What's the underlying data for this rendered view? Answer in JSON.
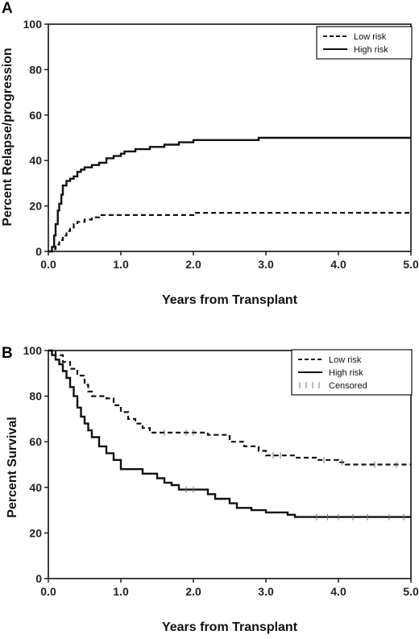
{
  "chart_data": [
    {
      "panel_label": "A",
      "type": "line",
      "step": true,
      "xlabel": "Years from Transplant",
      "ylabel": "Percent Relapse/progression",
      "xlim": [
        0,
        5
      ],
      "ylim": [
        0,
        100
      ],
      "xticks": [
        "0.0",
        "1.0",
        "2.0",
        "3.0",
        "4.0",
        "5.0"
      ],
      "yticks": [
        "0",
        "20",
        "40",
        "60",
        "80",
        "100"
      ],
      "grid": false,
      "legend_position": "top-right",
      "series": [
        {
          "name": "Low risk",
          "style": "dashed",
          "points": [
            [
              0,
              0
            ],
            [
              0.05,
              1
            ],
            [
              0.1,
              3
            ],
            [
              0.15,
              5
            ],
            [
              0.2,
              7
            ],
            [
              0.25,
              9
            ],
            [
              0.3,
              10
            ],
            [
              0.35,
              12
            ],
            [
              0.4,
              13
            ],
            [
              0.5,
              14
            ],
            [
              0.6,
              15
            ],
            [
              0.7,
              16
            ],
            [
              1.0,
              16
            ],
            [
              1.5,
              16
            ],
            [
              1.9,
              16
            ],
            [
              2.0,
              17
            ],
            [
              3.0,
              17
            ],
            [
              4.0,
              17
            ],
            [
              5.0,
              17
            ]
          ]
        },
        {
          "name": "High risk",
          "style": "solid",
          "points": [
            [
              0,
              0
            ],
            [
              0.05,
              2
            ],
            [
              0.08,
              7
            ],
            [
              0.1,
              12
            ],
            [
              0.13,
              18
            ],
            [
              0.15,
              21
            ],
            [
              0.18,
              25
            ],
            [
              0.2,
              29
            ],
            [
              0.25,
              31
            ],
            [
              0.3,
              32
            ],
            [
              0.35,
              33
            ],
            [
              0.4,
              35
            ],
            [
              0.45,
              36
            ],
            [
              0.5,
              37
            ],
            [
              0.6,
              38
            ],
            [
              0.7,
              39
            ],
            [
              0.8,
              41
            ],
            [
              0.9,
              42
            ],
            [
              1.0,
              43
            ],
            [
              1.05,
              44
            ],
            [
              1.2,
              45
            ],
            [
              1.4,
              46
            ],
            [
              1.6,
              47
            ],
            [
              1.8,
              48
            ],
            [
              2.0,
              49
            ],
            [
              2.4,
              49
            ],
            [
              2.9,
              50
            ],
            [
              3.0,
              50
            ],
            [
              4.0,
              50
            ],
            [
              5.0,
              50
            ]
          ]
        }
      ]
    },
    {
      "panel_label": "B",
      "type": "line",
      "step": true,
      "xlabel": "Years from Transplant",
      "ylabel": "Percent Survival",
      "xlim": [
        0,
        5
      ],
      "ylim": [
        0,
        100
      ],
      "xticks": [
        "0.0",
        "1.0",
        "2.0",
        "3.0",
        "4.0",
        "5.0"
      ],
      "yticks": [
        "0",
        "20",
        "40",
        "60",
        "80",
        "100"
      ],
      "grid": false,
      "legend_position": "top-right",
      "censored_label": "Censored",
      "series": [
        {
          "name": "Low risk",
          "style": "dashed",
          "points": [
            [
              0,
              100
            ],
            [
              0.1,
              98
            ],
            [
              0.2,
              95
            ],
            [
              0.3,
              92
            ],
            [
              0.4,
              89
            ],
            [
              0.5,
              85
            ],
            [
              0.55,
              82
            ],
            [
              0.6,
              80
            ],
            [
              0.8,
              79
            ],
            [
              0.9,
              76
            ],
            [
              1.0,
              73
            ],
            [
              1.1,
              70
            ],
            [
              1.2,
              68
            ],
            [
              1.3,
              66
            ],
            [
              1.4,
              64
            ],
            [
              2.2,
              63
            ],
            [
              2.5,
              60
            ],
            [
              2.7,
              58
            ],
            [
              2.9,
              56
            ],
            [
              3.0,
              54
            ],
            [
              3.4,
              53
            ],
            [
              3.7,
              52
            ],
            [
              4.0,
              51
            ],
            [
              4.1,
              50
            ],
            [
              5.0,
              50
            ]
          ],
          "censored": [
            1.6,
            1.9,
            2.0,
            3.1,
            3.2,
            3.8,
            4.05,
            4.5,
            4.8
          ]
        },
        {
          "name": "High risk",
          "style": "solid",
          "points": [
            [
              0,
              100
            ],
            [
              0.05,
              98
            ],
            [
              0.1,
              96
            ],
            [
              0.15,
              94
            ],
            [
              0.2,
              91
            ],
            [
              0.25,
              88
            ],
            [
              0.3,
              84
            ],
            [
              0.35,
              80
            ],
            [
              0.4,
              75
            ],
            [
              0.45,
              71
            ],
            [
              0.5,
              68
            ],
            [
              0.55,
              65
            ],
            [
              0.6,
              62
            ],
            [
              0.7,
              58
            ],
            [
              0.8,
              55
            ],
            [
              0.9,
              52
            ],
            [
              1.0,
              48
            ],
            [
              1.3,
              46
            ],
            [
              1.5,
              44
            ],
            [
              1.6,
              42
            ],
            [
              1.7,
              41
            ],
            [
              1.8,
              39
            ],
            [
              2.2,
              37
            ],
            [
              2.3,
              35
            ],
            [
              2.5,
              33
            ],
            [
              2.6,
              31
            ],
            [
              2.8,
              30
            ],
            [
              3.0,
              29
            ],
            [
              3.3,
              28
            ],
            [
              3.4,
              27
            ],
            [
              5.0,
              27
            ]
          ],
          "censored": [
            1.9,
            2.0,
            3.7,
            3.85,
            4.0,
            4.2,
            4.4,
            4.7,
            4.9
          ]
        }
      ]
    }
  ]
}
